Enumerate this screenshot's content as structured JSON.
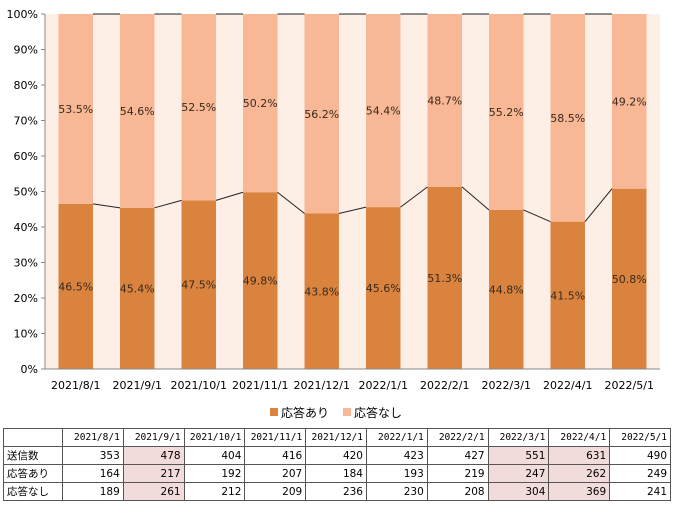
{
  "chart_data": {
    "type": "bar",
    "stacked": true,
    "percent": true,
    "categories": [
      "2021/8/1",
      "2021/9/1",
      "2021/10/1",
      "2021/11/1",
      "2021/12/1",
      "2022/1/1",
      "2022/2/1",
      "2022/3/1",
      "2022/4/1",
      "2022/5/1"
    ],
    "series": [
      {
        "name": "応答あり",
        "values": [
          46.5,
          45.4,
          47.5,
          49.8,
          43.8,
          45.6,
          51.3,
          44.8,
          41.5,
          50.8
        ],
        "labels": [
          "46.5%",
          "45.4%",
          "47.5%",
          "49.8%",
          "43.8%",
          "45.6%",
          "51.3%",
          "44.8%",
          "41.5%",
          "50.8%"
        ],
        "color": "#d9833e"
      },
      {
        "name": "応答なし",
        "values": [
          53.5,
          54.6,
          52.5,
          50.2,
          56.2,
          54.4,
          48.7,
          55.2,
          58.5,
          49.2
        ],
        "labels": [
          "53.5%",
          "54.6%",
          "52.5%",
          "50.2%",
          "56.2%",
          "54.4%",
          "48.7%",
          "55.2%",
          "58.5%",
          "49.2%"
        ],
        "color": "#f8b795"
      }
    ],
    "y_ticks": [
      "0%",
      "10%",
      "20%",
      "30%",
      "40%",
      "50%",
      "60%",
      "70%",
      "80%",
      "90%",
      "100%"
    ],
    "ylim": [
      0,
      100
    ],
    "legend_position": "bottom",
    "plot_background": "#fdeee6",
    "table": {
      "headers": [
        "",
        "2021/8/1",
        "2021/9/1",
        "2021/10/1",
        "2021/11/1",
        "2021/12/1",
        "2022/1/1",
        "2022/2/1",
        "2022/3/1",
        "2022/4/1",
        "2022/5/1"
      ],
      "rows": [
        {
          "label": "送信数",
          "values": [
            "353",
            "478",
            "404",
            "416",
            "420",
            "423",
            "427",
            "551",
            "631",
            "490"
          ]
        },
        {
          "label": "応答あり",
          "values": [
            "164",
            "217",
            "192",
            "207",
            "184",
            "193",
            "219",
            "247",
            "262",
            "249"
          ]
        },
        {
          "label": "応答なし",
          "values": [
            "189",
            "261",
            "212",
            "209",
            "236",
            "230",
            "208",
            "304",
            "369",
            "241"
          ]
        }
      ],
      "highlight_color": "#f2dcdb",
      "highlighted_columns": [
        1,
        7,
        8
      ]
    }
  }
}
